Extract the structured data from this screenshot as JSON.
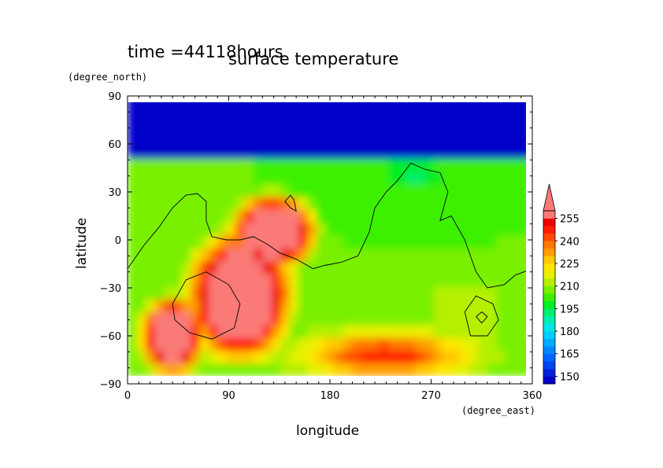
{
  "chart_data": {
    "type": "heatmap",
    "time_label": "time =44118hours",
    "title": "surface temperature",
    "xlabel": "longitude",
    "ylabel": "latitude",
    "x_unit": "(degree_east)",
    "y_unit": "(degree_north)",
    "xlim": [
      0,
      360
    ],
    "ylim": [
      -90,
      90
    ],
    "data_lat_range": [
      -85,
      85
    ],
    "x_ticks": [
      "0",
      "90",
      "180",
      "270",
      "360"
    ],
    "y_ticks": [
      "90",
      "60",
      "30",
      "0",
      "−30",
      "−60",
      "−90"
    ],
    "colorbar": {
      "levels": [
        145,
        150,
        155,
        160,
        165,
        170,
        175,
        180,
        185,
        190,
        195,
        200,
        205,
        210,
        215,
        220,
        225,
        230,
        235,
        240,
        245,
        250,
        255,
        260
      ],
      "tick_labels": [
        "255",
        "240",
        "225",
        "210",
        "195",
        "180",
        "165",
        "150"
      ],
      "extend": "max",
      "colors": [
        "#0000c8",
        "#0022dc",
        "#0044f0",
        "#0066ff",
        "#0088ff",
        "#00aaff",
        "#00ccff",
        "#00e6e6",
        "#00ecb0",
        "#00ee70",
        "#00ee28",
        "#3cf000",
        "#78f000",
        "#b4f000",
        "#e6f000",
        "#ffe600",
        "#ffc800",
        "#ffa000",
        "#ff7800",
        "#ff4b00",
        "#ff1e00",
        "#ee0000",
        "#fa7a78"
      ]
    },
    "notable_values": {
      "warm_region_max": 260,
      "north_polar_min": 145,
      "cold_spot_lon_lat": [
        255,
        42
      ]
    }
  }
}
